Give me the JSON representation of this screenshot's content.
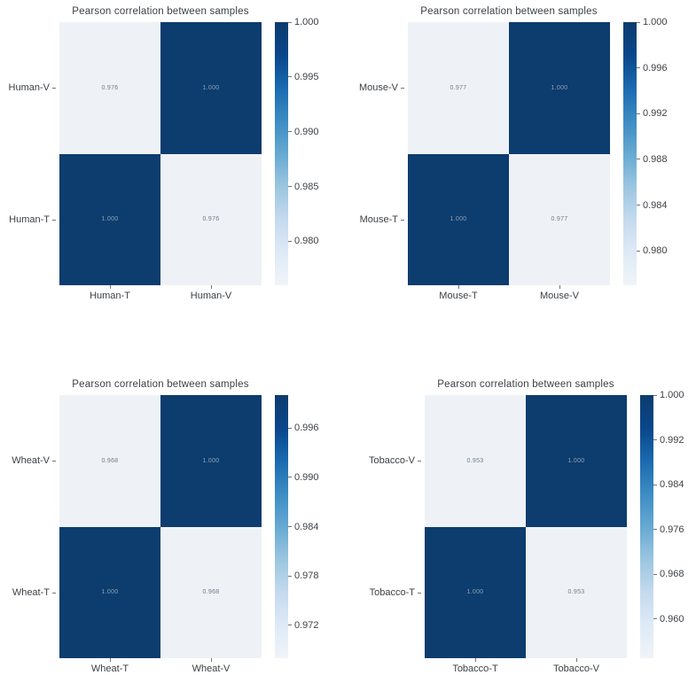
{
  "figure": {
    "background": "#ffffff",
    "shared_title": "Pearson correlation between samples",
    "layout": "2x2 grid of correlation heatmaps, each with a right-side colorbar"
  },
  "palette": {
    "cell_dark": "#0d3c6e",
    "cell_light": "#eef2f7",
    "annot_on_dark": "#8ca1b6",
    "annot_on_light": "#6f7b87",
    "axis_text": "#3c4146",
    "tick_mark": "#70757a",
    "colormap_stops_top_to_bottom": [
      "#0d3c6e",
      "#09468a",
      "#1a6ab0",
      "#3c8cc3",
      "#66a9d2",
      "#9bc6e0",
      "#c4daee",
      "#deeaf6",
      "#f0f4f8"
    ]
  },
  "chart_data": [
    {
      "type": "heatmap",
      "title": "Pearson correlation between samples",
      "rows": [
        "Human-V",
        "Human-T"
      ],
      "cols": [
        "Human-T",
        "Human-V"
      ],
      "values": [
        [
          0.976,
          1.0
        ],
        [
          1.0,
          0.976
        ]
      ],
      "labels": [
        [
          "0.976",
          "1.000"
        ],
        [
          "1.000",
          "0.976"
        ]
      ],
      "vmin": 0.976,
      "vmax": 1.0,
      "colormap": "Blues",
      "colorbar_ticks": [
        "1.000",
        "0.995",
        "0.990",
        "0.985",
        "0.980"
      ],
      "legend_position": "right",
      "grid": false
    },
    {
      "type": "heatmap",
      "title": "Pearson correlation between samples",
      "rows": [
        "Mouse-V",
        "Mouse-T"
      ],
      "cols": [
        "Mouse-T",
        "Mouse-V"
      ],
      "values": [
        [
          0.977,
          1.0
        ],
        [
          1.0,
          0.977
        ]
      ],
      "labels": [
        [
          "0.977",
          "1.000"
        ],
        [
          "1.000",
          "0.977"
        ]
      ],
      "vmin": 0.977,
      "vmax": 1.0,
      "colormap": "Blues",
      "colorbar_ticks": [
        "1.000",
        "0.996",
        "0.992",
        "0.988",
        "0.984",
        "0.980"
      ],
      "legend_position": "right",
      "grid": false
    },
    {
      "type": "heatmap",
      "title": "Pearson correlation between samples",
      "rows": [
        "Wheat-V",
        "Wheat-T"
      ],
      "cols": [
        "Wheat-T",
        "Wheat-V"
      ],
      "values": [
        [
          0.968,
          1.0
        ],
        [
          1.0,
          0.968
        ]
      ],
      "labels": [
        [
          "0.968",
          "1.000"
        ],
        [
          "1.000",
          "0.968"
        ]
      ],
      "vmin": 0.968,
      "vmax": 1.0,
      "colormap": "Blues",
      "colorbar_ticks": [
        "0.996",
        "0.990",
        "0.984",
        "0.978",
        "0.972"
      ],
      "legend_position": "right",
      "grid": false
    },
    {
      "type": "heatmap",
      "title": "Pearson correlation between samples",
      "rows": [
        "Tobacco-V",
        "Tobacco-T"
      ],
      "cols": [
        "Tobacco-T",
        "Tobacco-V"
      ],
      "values": [
        [
          0.953,
          1.0
        ],
        [
          1.0,
          0.953
        ]
      ],
      "labels": [
        [
          "0.953",
          "1.000"
        ],
        [
          "1.000",
          "0.953"
        ]
      ],
      "vmin": 0.953,
      "vmax": 1.0,
      "colormap": "Blues",
      "colorbar_ticks": [
        "1.000",
        "0.992",
        "0.984",
        "0.976",
        "0.968",
        "0.960"
      ],
      "legend_position": "right",
      "grid": false
    }
  ]
}
